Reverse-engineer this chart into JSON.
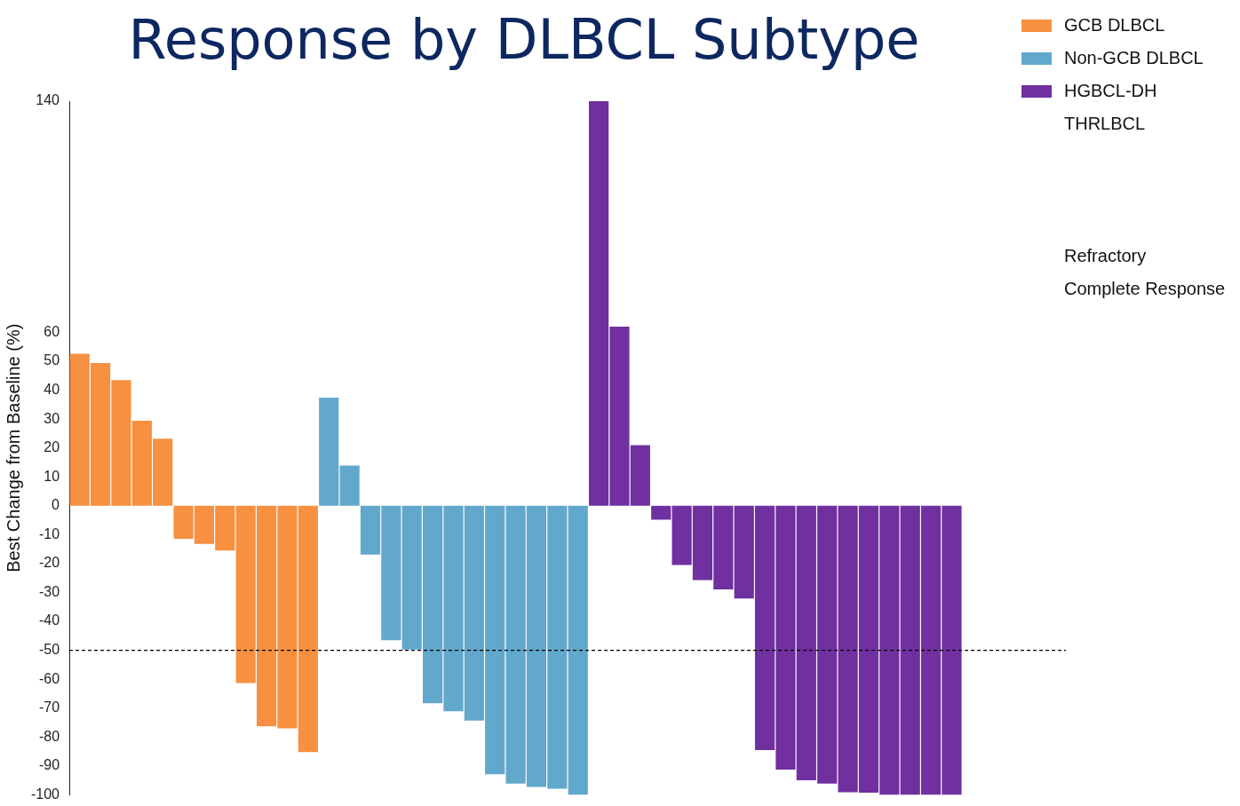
{
  "chart_data": {
    "type": "bar",
    "title": "Response by DLBCL Subtype",
    "ylabel": "Best Change from Baseline (%)",
    "categories": [
      null,
      null,
      null,
      null,
      null,
      null,
      null,
      null,
      null,
      null,
      null,
      null,
      null,
      null,
      null,
      null,
      null,
      null,
      null,
      null,
      null,
      null,
      null,
      null,
      null,
      null,
      null,
      null,
      null,
      null,
      null,
      null,
      null,
      null,
      null,
      null,
      null,
      null,
      null,
      null,
      null,
      null,
      null,
      null,
      null,
      null,
      null,
      null
    ],
    "series": [
      {
        "name": "GCB DLBCL",
        "color": "#f79040",
        "values": [
          52.6,
          49.4,
          43.5,
          29.4,
          23.2,
          -11.4,
          -13.2,
          -15.5,
          -61.3,
          -76.3,
          -77,
          -85.2,
          null,
          null,
          null,
          null,
          null,
          null,
          null,
          null,
          null,
          null,
          null,
          null,
          null,
          null,
          null,
          null,
          null,
          null,
          null,
          null,
          null,
          null,
          null,
          null,
          null,
          null,
          null,
          null,
          null,
          null,
          null,
          null,
          null,
          null,
          null,
          null
        ]
      },
      {
        "name": "Non-GCB DLBCL",
        "color": "#61a8cc",
        "values": [
          null,
          null,
          null,
          null,
          null,
          null,
          null,
          null,
          null,
          null,
          null,
          null,
          37.4,
          13.9,
          -16.9,
          -46.5,
          -49.7,
          -68.3,
          -71.1,
          -74.3,
          -92.9,
          -96.1,
          -97.3,
          -97.9,
          -100,
          null,
          null,
          null,
          null,
          null,
          null,
          null,
          null,
          null,
          null,
          null,
          null,
          null,
          null,
          null,
          null,
          null,
          null,
          null,
          null,
          null,
          null,
          null
        ]
      },
      {
        "name": "HGBCL-DH",
        "color": "#7030a0",
        "values": [
          null,
          null,
          null,
          null,
          null,
          null,
          null,
          null,
          null,
          null,
          null,
          null,
          null,
          null,
          null,
          null,
          null,
          null,
          null,
          null,
          null,
          null,
          null,
          null,
          null,
          140,
          62,
          21,
          -4.8,
          -20.5,
          -25.7,
          -28.9,
          -32.1,
          -84.5,
          -91.3,
          -95,
          -96.1,
          -99.1,
          -99.3,
          -100,
          -100,
          -100,
          -100,
          null,
          null,
          null,
          null,
          null
        ]
      }
    ],
    "ylim": [
      -100,
      140
    ],
    "yticks": [
      -100,
      -90,
      -80,
      -70,
      -60,
      -50,
      -40,
      -30,
      -20,
      -10,
      0,
      10,
      20,
      30,
      40,
      50,
      60,
      140
    ],
    "grid": false,
    "tick_labels": "y",
    "legend": "top right",
    "ref_lines": [
      {
        "axis": "y",
        "value": -50,
        "color": "#000000",
        "line_style": "dashed"
      }
    ],
    "annotations": [
      "THRLBCL",
      "Refractory",
      "Complete Response"
    ]
  }
}
